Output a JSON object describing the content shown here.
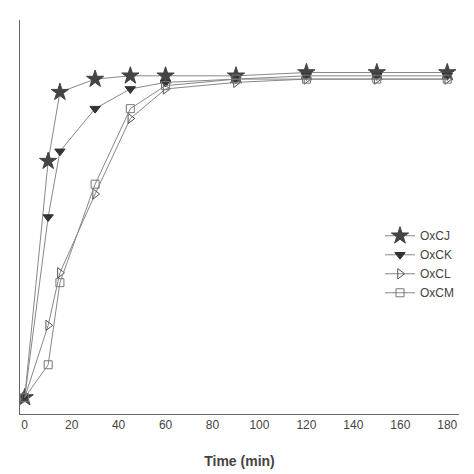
{
  "chart_data": {
    "type": "line",
    "xlabel": "Time (min)",
    "xlim": [
      -2,
      185
    ],
    "ylim": [
      -5,
      115
    ],
    "xticks": [
      0,
      20,
      40,
      60,
      80,
      100,
      120,
      140,
      160,
      180
    ],
    "yticks": [],
    "color": "#888888",
    "grid": false,
    "legend": "right",
    "tick_labels": "x",
    "series": [
      {
        "name": "OxCJ",
        "marker": "star",
        "color": "#444444",
        "x": [
          0,
          10,
          15,
          30,
          45,
          60,
          90,
          120,
          150,
          180
        ],
        "values": [
          0,
          72,
          93,
          97,
          98,
          98,
          98,
          99,
          99,
          99
        ]
      },
      {
        "name": "OxCK",
        "marker": "triangle-down",
        "color": "#333333",
        "x": [
          0,
          10,
          15,
          30,
          45,
          60,
          90,
          120,
          150,
          180
        ],
        "values": [
          0,
          55,
          75,
          88,
          94,
          96,
          97,
          98,
          98,
          98
        ]
      },
      {
        "name": "OxCL",
        "marker": "triangle-right-open",
        "color": "#555555",
        "x": [
          0,
          10,
          15,
          30,
          45,
          60,
          90,
          120,
          150,
          180
        ],
        "values": [
          0,
          22,
          38,
          62,
          85,
          94,
          96,
          97,
          97,
          97
        ]
      },
      {
        "name": "OxCM",
        "marker": "square-open",
        "color": "#777777",
        "x": [
          0,
          10,
          15,
          30,
          45,
          60,
          90,
          120,
          150,
          180
        ],
        "values": [
          0,
          10,
          35,
          65,
          88,
          95,
          97,
          97,
          97,
          97
        ]
      }
    ]
  }
}
